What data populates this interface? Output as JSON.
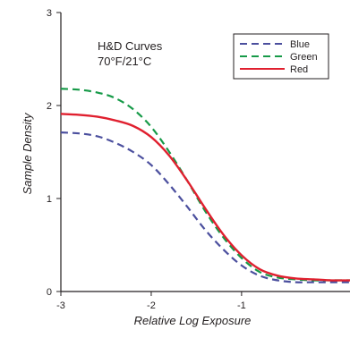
{
  "chart_data": {
    "type": "line",
    "title": "",
    "annotation": [
      "H&D Curves",
      "70°F/21°C"
    ],
    "xlabel": "Relative Log Exposure",
    "ylabel": "Sample Density",
    "xlim": [
      -3,
      0.2
    ],
    "ylim": [
      0,
      3
    ],
    "x_ticks": [
      -3,
      -2,
      -1
    ],
    "x_tick_labels": [
      "-3",
      "-2",
      "-1"
    ],
    "y_ticks": [
      0,
      1,
      2,
      3
    ],
    "y_tick_labels": [
      "0",
      "1",
      "2",
      "3"
    ],
    "grid": false,
    "legend_position": "top-right",
    "series": [
      {
        "name": "Blue",
        "color": "#4b4f9e",
        "dash": "dashed",
        "x": [
          -3.0,
          -2.8,
          -2.6,
          -2.4,
          -2.2,
          -2.0,
          -1.8,
          -1.6,
          -1.4,
          -1.2,
          -1.0,
          -0.8,
          -0.6,
          -0.4,
          -0.2,
          0.0,
          0.2
        ],
        "y": [
          1.71,
          1.7,
          1.67,
          1.6,
          1.5,
          1.36,
          1.15,
          0.91,
          0.66,
          0.45,
          0.28,
          0.17,
          0.12,
          0.1,
          0.1,
          0.1,
          0.1
        ]
      },
      {
        "name": "Green",
        "color": "#169a48",
        "dash": "dashed",
        "x": [
          -3.0,
          -2.8,
          -2.6,
          -2.4,
          -2.2,
          -2.0,
          -1.8,
          -1.6,
          -1.4,
          -1.2,
          -1.0,
          -0.8,
          -0.6,
          -0.4,
          -0.2,
          0.0,
          0.2
        ],
        "y": [
          2.18,
          2.17,
          2.14,
          2.08,
          1.96,
          1.77,
          1.5,
          1.19,
          0.86,
          0.58,
          0.36,
          0.21,
          0.15,
          0.13,
          0.12,
          0.12,
          0.12
        ]
      },
      {
        "name": "Red",
        "color": "#e0202f",
        "dash": "solid",
        "x": [
          -3.0,
          -2.8,
          -2.6,
          -2.4,
          -2.2,
          -2.0,
          -1.8,
          -1.6,
          -1.4,
          -1.2,
          -1.0,
          -0.8,
          -0.6,
          -0.4,
          -0.2,
          0.0,
          0.2
        ],
        "y": [
          1.91,
          1.9,
          1.88,
          1.84,
          1.78,
          1.66,
          1.46,
          1.19,
          0.89,
          0.61,
          0.39,
          0.24,
          0.17,
          0.14,
          0.13,
          0.12,
          0.12
        ]
      }
    ]
  }
}
